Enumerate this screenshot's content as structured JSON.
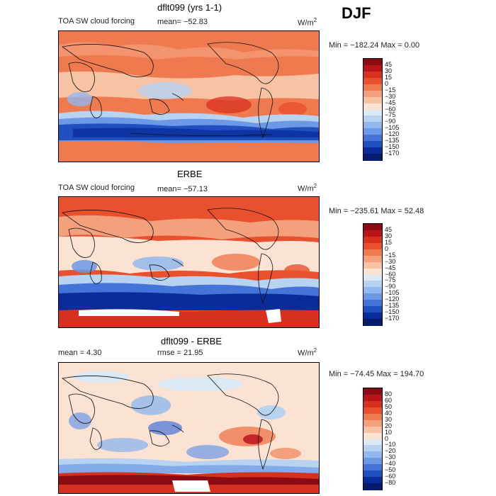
{
  "season": "DJF",
  "panels": [
    {
      "id": "model",
      "title": "dflt099 (yrs 1-1)",
      "field_label": "TOA SW cloud forcing",
      "stat1": "mean= −52.83",
      "stat2": "",
      "units": "W/m",
      "units_sup": "2",
      "minmax": "Min = −182.24 Max =    0.00",
      "colorbar": {
        "levels": [
          "45",
          "30",
          "15",
          "0",
          "−15",
          "−30",
          "−45",
          "−60",
          "−75",
          "−90",
          "−105",
          "−120",
          "−135",
          "−150",
          "−170"
        ],
        "colors": [
          "#8c0a12",
          "#b8141c",
          "#d8301f",
          "#e8502e",
          "#f07a50",
          "#f5a07c",
          "#f8c2a4",
          "#fbe2d2",
          "#dbe8f6",
          "#b8d2f2",
          "#92b8ee",
          "#6c98e6",
          "#4474d8",
          "#2050c0",
          "#0a2c9a",
          "#061a6e"
        ]
      }
    },
    {
      "id": "obs",
      "title": "ERBE",
      "field_label": "TOA SW cloud forcing",
      "stat1": "mean= −57.13",
      "stat2": "",
      "units": "W/m",
      "units_sup": "2",
      "minmax": "Min = −235.61 Max =  52.48",
      "colorbar": {
        "levels": [
          "45",
          "30",
          "15",
          "0",
          "−15",
          "−30",
          "−45",
          "−60",
          "−75",
          "−90",
          "−105",
          "−120",
          "−135",
          "−150",
          "−170"
        ],
        "colors": [
          "#8c0a12",
          "#b8141c",
          "#d8301f",
          "#e8502e",
          "#f07a50",
          "#f5a07c",
          "#f8c2a4",
          "#fbe2d2",
          "#dbe8f6",
          "#b8d2f2",
          "#92b8ee",
          "#6c98e6",
          "#4474d8",
          "#2050c0",
          "#0a2c9a",
          "#061a6e"
        ]
      }
    },
    {
      "id": "diff",
      "title": "dflt099 - ERBE",
      "field_label": "",
      "stat1": "mean =    4.30",
      "stat2": "rmse =  21.95",
      "units": "W/m",
      "units_sup": "2",
      "minmax": "Min = −74.45 Max = 194.70",
      "colorbar": {
        "levels": [
          "80",
          "60",
          "50",
          "40",
          "30",
          "20",
          "10",
          "0",
          "−10",
          "−20",
          "−30",
          "−40",
          "−50",
          "−60",
          "−80"
        ],
        "colors": [
          "#8c0a12",
          "#b8141c",
          "#d8301f",
          "#e8502e",
          "#f07a50",
          "#f5a07c",
          "#f8c2a4",
          "#fbe2d2",
          "#dbe8f6",
          "#b8d2f2",
          "#92b8ee",
          "#6c98e6",
          "#4474d8",
          "#2050c0",
          "#0a2c9a",
          "#061a6e"
        ]
      }
    }
  ]
}
